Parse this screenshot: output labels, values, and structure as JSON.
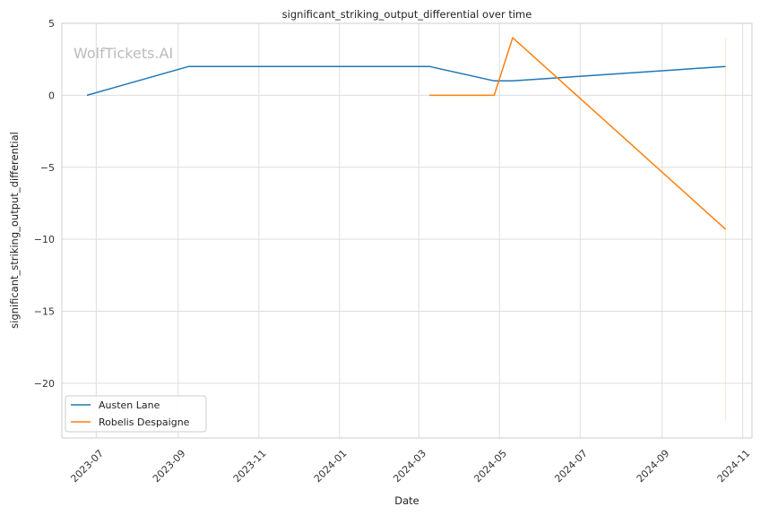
{
  "chart_data": {
    "type": "line",
    "title": "significant_striking_output_differential over time",
    "xlabel": "Date",
    "ylabel": "significant_striking_output_differential",
    "watermark": "WolfTickets.AI",
    "x_ticks": [
      "2023-07-01",
      "2023-09-01",
      "2023-11-01",
      "2024-01-01",
      "2024-03-01",
      "2024-05-01",
      "2024-07-01",
      "2024-09-01",
      "2024-11-01"
    ],
    "x_tick_labels": [
      "2023-07",
      "2023-09",
      "2023-11",
      "2024-01",
      "2024-03",
      "2024-05",
      "2024-07",
      "2024-09",
      "2024-11"
    ],
    "xlim": [
      "2023-06-05",
      "2024-11-08"
    ],
    "y_ticks": [
      5,
      0,
      -5,
      -10,
      -15,
      -20
    ],
    "y_tick_labels": [
      "5",
      "0",
      "−5",
      "−10",
      "−15",
      "−20"
    ],
    "ylim": [
      -23.8,
      5
    ],
    "grid": true,
    "legend_position": "lower-left",
    "series": [
      {
        "name": "Austen Lane",
        "color": "#1f77b4",
        "points": [
          {
            "x": "2023-06-24",
            "y": 0
          },
          {
            "x": "2023-09-09",
            "y": 2
          },
          {
            "x": "2024-03-09",
            "y": 2
          },
          {
            "x": "2024-04-27",
            "y": 1
          },
          {
            "x": "2024-05-11",
            "y": 1
          },
          {
            "x": "2024-10-19",
            "y": 2
          }
        ]
      },
      {
        "name": "Robelis Despaigne",
        "color": "#ff7f0e",
        "points": [
          {
            "x": "2024-03-09",
            "y": 0
          },
          {
            "x": "2024-04-27",
            "y": 0
          },
          {
            "x": "2024-05-11",
            "y": 4
          },
          {
            "x": "2024-10-19",
            "y": -9.3
          }
        ]
      }
    ],
    "range_band": {
      "x": "2024-10-19",
      "y_min": -22.6,
      "y_max": 4,
      "color": "#ff7f0e"
    }
  }
}
